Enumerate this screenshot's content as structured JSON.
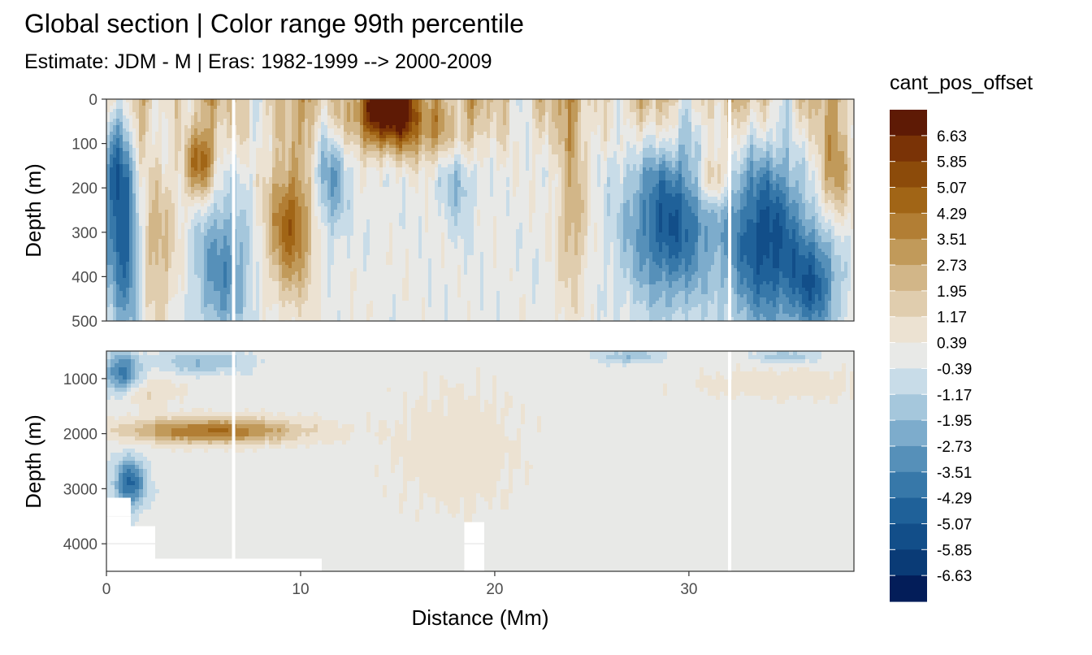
{
  "chart_data": {
    "type": "heatmap",
    "title": "Global section | Color range 99th percentile",
    "subtitle": "Estimate: JDM - M | Eras: 1982-1999 --> 2000-2009",
    "xlabel": "Distance (Mm)",
    "ylabel": "Depth (m)",
    "xlim": [
      0,
      38.5
    ],
    "x_ticks": [
      0,
      10,
      20,
      30
    ],
    "panels": [
      {
        "name": "upper",
        "ylim": [
          0,
          500
        ],
        "y_ticks": [
          0,
          100,
          200,
          300,
          400,
          500
        ]
      },
      {
        "name": "lower",
        "ylim": [
          500,
          4500
        ],
        "y_ticks": [
          1000,
          2000,
          3000,
          4000
        ]
      }
    ],
    "legend": {
      "title": "cant_pos_offset",
      "position": "right",
      "labels": [
        "6.63",
        "5.85",
        "5.07",
        "4.29",
        "3.51",
        "2.73",
        "1.95",
        "1.17",
        "0.39",
        "-0.39",
        "-1.17",
        "-1.95",
        "-2.73",
        "-3.51",
        "-4.29",
        "-5.07",
        "-5.85",
        "-6.63"
      ],
      "colors": [
        "#5e1a05",
        "#7a3306",
        "#8c4b0a",
        "#a16516",
        "#b27e34",
        "#c19a5a",
        "#d2b688",
        "#e0cdae",
        "#ece2d2",
        "#e8e9e7",
        "#c8dce8",
        "#a5c7dc",
        "#7daccc",
        "#5690b9",
        "#3778a9",
        "#1f6199",
        "#124e89",
        "#0a3b76",
        "#031d59"
      ]
    },
    "grid": true
  }
}
